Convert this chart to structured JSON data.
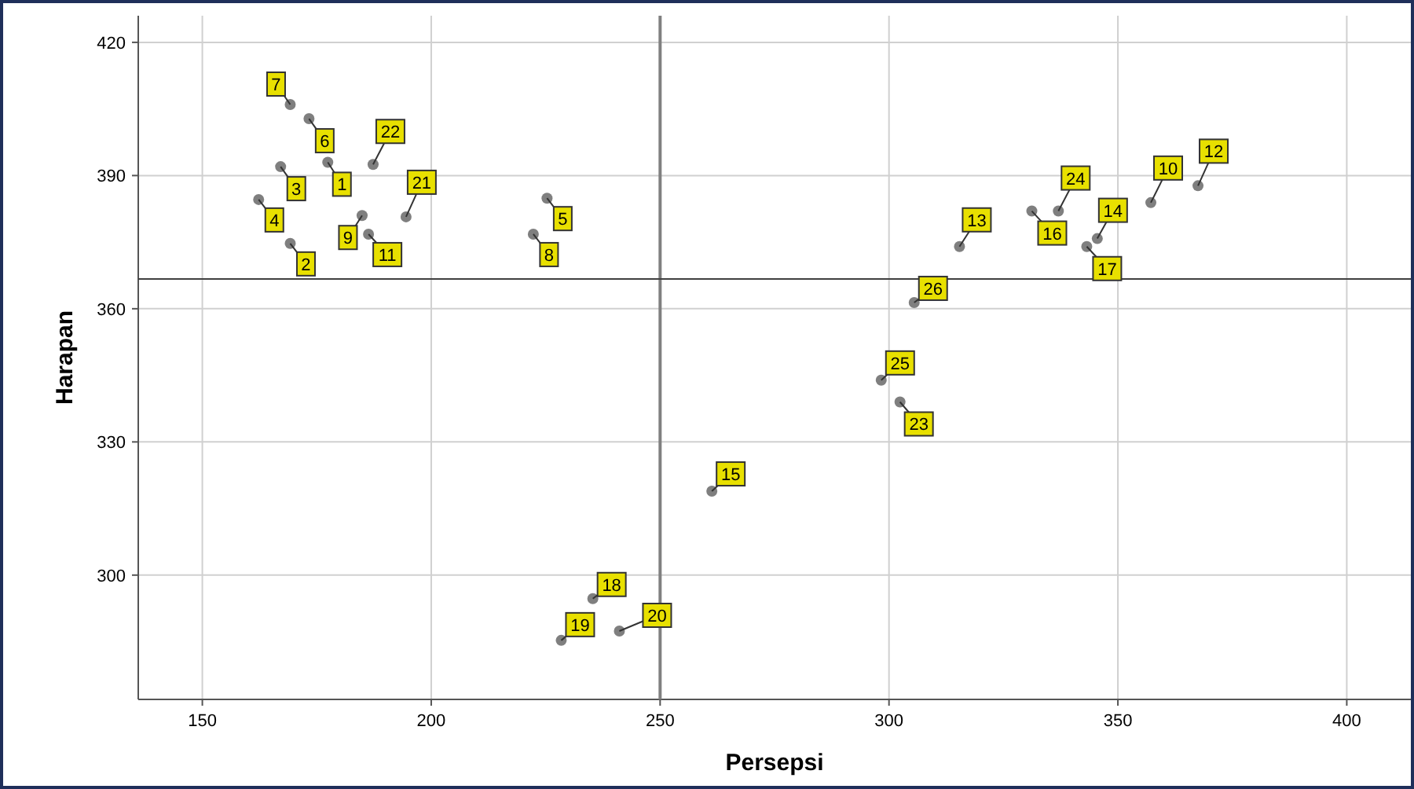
{
  "chart_data": {
    "type": "scatter",
    "xlabel": "Persepsi",
    "ylabel": "Harapan",
    "xlim": [
      136,
      414
    ],
    "ylim": [
      272,
      426
    ],
    "xticks": [
      150,
      200,
      250,
      300,
      350,
      400
    ],
    "yticks": [
      300,
      330,
      360,
      390,
      420
    ],
    "grid": true,
    "marker": "circle",
    "series": [
      {
        "color": "#7f7f7f",
        "x": [
          177.4,
          169.2,
          167.1,
          162.3,
          225.3,
          173.3,
          169.2,
          222.3,
          184.9,
          357.2,
          186.3,
          367.5,
          315.4,
          345.5,
          261.3,
          331.2,
          343.2,
          235.3,
          228.4,
          241.1,
          194.5,
          187.3,
          302.4,
          337,
          298.3,
          305.5
        ],
        "values": [
          393,
          374.7,
          392,
          384.6,
          384.9,
          402.8,
          406,
          376.8,
          381,
          383.9,
          376.8,
          387.7,
          374,
          375.8,
          318.9,
          382,
          374,
          294.7,
          285.3,
          287.4,
          380.7,
          392.5,
          339,
          382,
          343.9,
          361.4
        ]
      }
    ],
    "ref_lines": [
      {
        "axis": "x",
        "value": 250,
        "color": "#808080"
      },
      {
        "axis": "y",
        "value": 366.7,
        "color": "#404040"
      }
    ],
    "annotations": [
      {
        "text": "1",
        "x": 177.4,
        "y": 393
      },
      {
        "text": "2",
        "x": 169.2,
        "y": 374.7
      },
      {
        "text": "3",
        "x": 167.1,
        "y": 392
      },
      {
        "text": "4",
        "x": 162.3,
        "y": 384.6
      },
      {
        "text": "5",
        "x": 225.3,
        "y": 384.9
      },
      {
        "text": "6",
        "x": 173.3,
        "y": 402.8
      },
      {
        "text": "7",
        "x": 169.2,
        "y": 406
      },
      {
        "text": "8",
        "x": 222.3,
        "y": 376.8
      },
      {
        "text": "9",
        "x": 184.9,
        "y": 381
      },
      {
        "text": "10",
        "x": 357.2,
        "y": 383.9
      },
      {
        "text": "11",
        "x": 186.3,
        "y": 376.8
      },
      {
        "text": "12",
        "x": 367.5,
        "y": 387.7
      },
      {
        "text": "13",
        "x": 315.4,
        "y": 374
      },
      {
        "text": "14",
        "x": 345.5,
        "y": 375.8
      },
      {
        "text": "15",
        "x": 261.3,
        "y": 318.9
      },
      {
        "text": "16",
        "x": 331.2,
        "y": 382
      },
      {
        "text": "17",
        "x": 343.2,
        "y": 374
      },
      {
        "text": "18",
        "x": 235.3,
        "y": 294.7
      },
      {
        "text": "19",
        "x": 228.4,
        "y": 285.3
      },
      {
        "text": "20",
        "x": 241.1,
        "y": 287.4
      },
      {
        "text": "21",
        "x": 194.5,
        "y": 380.7
      },
      {
        "text": "22",
        "x": 187.3,
        "y": 392.5
      },
      {
        "text": "23",
        "x": 302.4,
        "y": 339
      },
      {
        "text": "24",
        "x": 337,
        "y": 382
      },
      {
        "text": "25",
        "x": 298.3,
        "y": 343.9
      },
      {
        "text": "26",
        "x": 305.5,
        "y": 361.4
      }
    ]
  }
}
